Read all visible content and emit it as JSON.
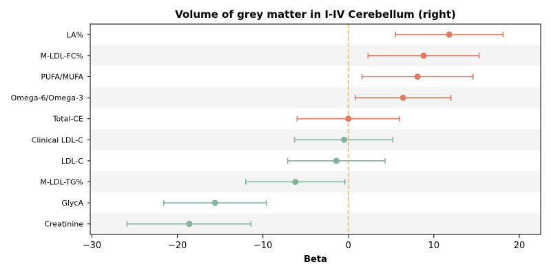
{
  "chart_data": {
    "type": "forest",
    "title": "Volume of grey matter in I-IV Cerebellum (right)",
    "xlabel": "Beta",
    "xlim": [
      -30.2,
      22.5
    ],
    "xticks": [
      {
        "value": -30,
        "label": "−30"
      },
      {
        "value": -20,
        "label": "−20"
      },
      {
        "value": -10,
        "label": "−10"
      },
      {
        "value": 0,
        "label": "0"
      },
      {
        "value": 10,
        "label": "10"
      },
      {
        "value": 20,
        "label": "20"
      }
    ],
    "reference_line": 0,
    "row_shading": "alternating",
    "colors": {
      "positive": "#e07b5f",
      "negative": "#7fb59a",
      "reference": "#f0c27a",
      "band": "#f4f4f4"
    },
    "rows": [
      {
        "label": "LA%",
        "beta": 11.8,
        "ci_low": 5.5,
        "ci_high": 18.1,
        "group": "positive"
      },
      {
        "label": "M-LDL-FC%",
        "beta": 8.8,
        "ci_low": 2.3,
        "ci_high": 15.3,
        "group": "positive"
      },
      {
        "label": "PUFA/MUFA",
        "beta": 8.1,
        "ci_low": 1.6,
        "ci_high": 14.6,
        "group": "positive"
      },
      {
        "label": "Omega-6/Omega-3",
        "beta": 6.4,
        "ci_low": 0.8,
        "ci_high": 12.0,
        "group": "positive"
      },
      {
        "label": "Total-CE",
        "beta": 0.0,
        "ci_low": -6.0,
        "ci_high": 6.0,
        "group": "positive"
      },
      {
        "label": "Clinical LDL-C",
        "beta": -0.5,
        "ci_low": -6.3,
        "ci_high": 5.2,
        "group": "negative"
      },
      {
        "label": "LDL-C",
        "beta": -1.4,
        "ci_low": -7.1,
        "ci_high": 4.3,
        "group": "negative"
      },
      {
        "label": "M-LDL-TG%",
        "beta": -6.2,
        "ci_low": -12.0,
        "ci_high": -0.4,
        "group": "negative"
      },
      {
        "label": "GlycA",
        "beta": -15.6,
        "ci_low": -21.6,
        "ci_high": -9.6,
        "group": "negative"
      },
      {
        "label": "Creatinine",
        "beta": -18.6,
        "ci_low": -25.9,
        "ci_high": -11.4,
        "group": "negative"
      }
    ]
  }
}
